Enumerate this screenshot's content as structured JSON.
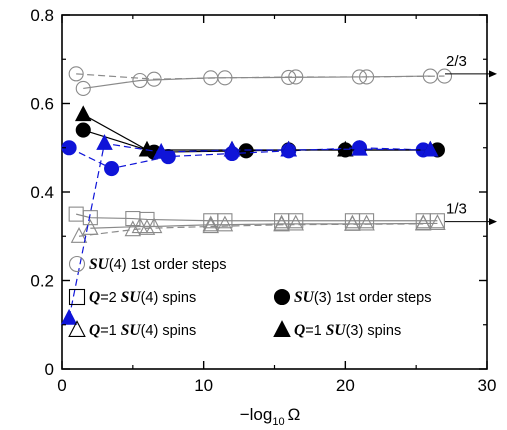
{
  "chart_data": {
    "type": "scatter",
    "title": "",
    "xlabel_prefix": "−log",
    "xlabel_sub": "10",
    "xlabel_var": "Ω",
    "ylabel": "",
    "xlim": [
      0,
      30
    ],
    "ylim": [
      0,
      0.8
    ],
    "xticks": [
      "0",
      "10",
      "20",
      "30"
    ],
    "yticks": [
      "0",
      "0.2",
      "0.4",
      "0.6",
      "0.8"
    ],
    "grid": false,
    "legend_position": "inside-lower-left",
    "colors": {
      "black": "#000000",
      "gray": "#8a8a8a",
      "blue": "#0f14d8"
    },
    "series": [
      {
        "name": "SU(4) 1st order steps",
        "marker": "circle-open",
        "color": "#8a8a8a",
        "line": "solid",
        "points": [
          [
            1.5,
            0.634
          ],
          [
            5.5,
            0.652
          ],
          [
            10.5,
            0.658
          ],
          [
            16,
            0.659
          ],
          [
            21,
            0.66
          ],
          [
            26,
            0.662
          ]
        ]
      },
      {
        "name": "SU(4) 1st order steps (dashed)",
        "marker": "circle-open",
        "color": "#8a8a8a",
        "line": "dashed",
        "points": [
          [
            1,
            0.667
          ],
          [
            6.5,
            0.655
          ],
          [
            11.5,
            0.658
          ],
          [
            16.5,
            0.66
          ],
          [
            21.5,
            0.66
          ],
          [
            27,
            0.662
          ]
        ]
      },
      {
        "name": "Q=2 SU(4) spins",
        "marker": "square-open",
        "color": "#8a8a8a",
        "line": "solid",
        "points": [
          [
            1,
            0.35
          ],
          [
            2,
            0.342
          ],
          [
            5,
            0.34
          ],
          [
            6,
            0.338
          ],
          [
            10.5,
            0.335
          ],
          [
            11.5,
            0.335
          ],
          [
            15.5,
            0.335
          ],
          [
            16.5,
            0.335
          ],
          [
            20.5,
            0.335
          ],
          [
            21.5,
            0.335
          ],
          [
            25.5,
            0.335
          ],
          [
            26.5,
            0.335
          ]
        ]
      },
      {
        "name": "Q=1 SU(4) spins",
        "marker": "triangle-open",
        "color": "#8a8a8a",
        "line": "solid",
        "points": [
          [
            2,
            0.318
          ],
          [
            5.5,
            0.322
          ],
          [
            6.5,
            0.322
          ],
          [
            10.5,
            0.326
          ],
          [
            11.5,
            0.326
          ],
          [
            15.5,
            0.328
          ],
          [
            16.5,
            0.328
          ],
          [
            20.5,
            0.328
          ],
          [
            21.5,
            0.328
          ],
          [
            25.5,
            0.329
          ],
          [
            26.5,
            0.329
          ]
        ]
      },
      {
        "name": "Q=1 SU(4) spins (dashed)",
        "marker": "triangle-open",
        "color": "#8a8a8a",
        "line": "dashed",
        "points": [
          [
            1.2,
            0.3
          ],
          [
            5,
            0.315
          ],
          [
            6,
            0.318
          ],
          [
            10.5,
            0.322
          ],
          [
            15.5,
            0.326
          ],
          [
            20.5,
            0.327
          ],
          [
            25.5,
            0.328
          ]
        ]
      },
      {
        "name": "SU(3) 1st order steps",
        "marker": "circle-filled",
        "color": "#000000",
        "line": "solid",
        "points": [
          [
            1.5,
            0.54
          ],
          [
            6.5,
            0.49
          ],
          [
            13,
            0.493
          ],
          [
            16,
            0.495
          ],
          [
            20,
            0.495
          ],
          [
            26.5,
            0.495
          ]
        ]
      },
      {
        "name": "SU(3) 1st order steps (blue)",
        "marker": "circle-filled",
        "color": "#0f14d8",
        "line": "dashed",
        "points": [
          [
            0.5,
            0.5
          ],
          [
            3.5,
            0.453
          ],
          [
            7.5,
            0.48
          ],
          [
            12,
            0.487
          ],
          [
            16,
            0.493
          ],
          [
            21,
            0.5
          ],
          [
            25.5,
            0.495
          ]
        ]
      },
      {
        "name": "Q=1 SU(3) spins",
        "marker": "triangle-filled",
        "color": "#000000",
        "line": "solid",
        "points": [
          [
            1.5,
            0.575
          ],
          [
            6,
            0.495
          ],
          [
            12,
            0.495
          ],
          [
            16,
            0.495
          ],
          [
            20,
            0.495
          ],
          [
            26,
            0.495
          ]
        ]
      },
      {
        "name": "Q=1 SU(3) spins (blue)",
        "marker": "triangle-filled",
        "color": "#0f14d8",
        "line": "dashed",
        "points": [
          [
            0.5,
            0.115
          ],
          [
            3,
            0.51
          ],
          [
            7,
            0.49
          ],
          [
            12,
            0.495
          ],
          [
            16,
            0.495
          ],
          [
            21,
            0.497
          ],
          [
            26,
            0.495
          ]
        ]
      }
    ],
    "annotations": [
      {
        "text": "2/3",
        "y": 0.667
      },
      {
        "text": "1/3",
        "y": 0.333
      }
    ],
    "legend": [
      {
        "marker": "circle-open",
        "color": "#8a8a8a",
        "prefix": "",
        "su": "SU",
        "rest": "(4) 1st order steps"
      },
      {
        "marker": "square-open",
        "color": "#000000",
        "prefix": "Q",
        "qrest": "=2 ",
        "su": "SU",
        "rest": "(4) spins"
      },
      {
        "marker": "circle-filled",
        "color": "#000000",
        "prefix": "",
        "su": "SU",
        "rest": "(3) 1st order steps"
      },
      {
        "marker": "triangle-open",
        "color": "#000000",
        "prefix": "Q",
        "qrest": "=1 ",
        "su": "SU",
        "rest": "(4) spins"
      },
      {
        "marker": "triangle-filled",
        "color": "#000000",
        "prefix": "Q",
        "qrest": "=1 ",
        "su": "SU",
        "rest": "(3) spins"
      }
    ]
  }
}
